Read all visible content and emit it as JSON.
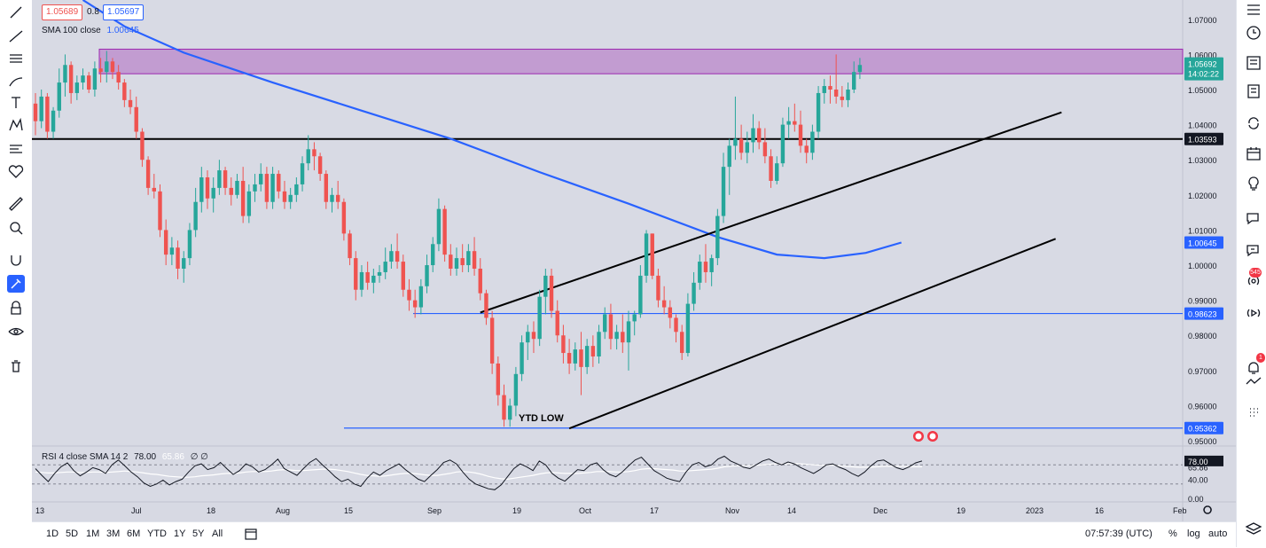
{
  "legend": {
    "open_value": "1.05689",
    "spread": "0.8",
    "close_value": "1.05697",
    "sma_label": "SMA 100 close",
    "sma_value": "1.00645"
  },
  "rsi_legend": {
    "label": "RSI 4 close SMA 14 2",
    "value1": "78.00",
    "value2": "65.86",
    "extras": "∅ ∅"
  },
  "colors": {
    "up": "#26a69a",
    "down": "#ef5350",
    "sma": "#2962ff",
    "zone": "#9c27b0",
    "support": "#000000",
    "blue_line": "#2962ff",
    "price_label": "#26a69a"
  },
  "chart_data": {
    "type": "candlestick",
    "price_axis": [
      "1.07000",
      "1.06000",
      "1.05000",
      "1.04000",
      "1.03000",
      "1.02000",
      "1.01000",
      "1.00000",
      "0.99000",
      "0.98000",
      "0.97000",
      "0.96000",
      "0.95000"
    ],
    "ylim": [
      0.9485,
      1.0755
    ],
    "time_axis": [
      "13",
      "Jul",
      "18",
      "Aug",
      "15",
      "Sep",
      "19",
      "Oct",
      "17",
      "Nov",
      "14",
      "Dec",
      "19",
      "2023",
      "16",
      "Feb"
    ],
    "price_labels": {
      "current": "1.05692",
      "countdown": "14:02:22",
      "level_black": "1.03593",
      "sma": "1.00645",
      "level_blue_1": "0.98623",
      "level_blue_2": "0.95362"
    },
    "annotation": "YTD LOW",
    "horizontal_levels": [
      1.03593,
      0.98623,
      0.95362
    ],
    "resistance_zone": [
      1.0545,
      1.0615
    ],
    "sma100": [
      {
        "day": 8,
        "value": 1.0755
      },
      {
        "day": 15,
        "value": 1.068
      },
      {
        "day": 25,
        "value": 1.0605
      },
      {
        "day": 40,
        "value": 1.052
      },
      {
        "day": 55,
        "value": 1.044
      },
      {
        "day": 70,
        "value": 1.036
      },
      {
        "day": 85,
        "value": 1.0265
      },
      {
        "day": 100,
        "value": 1.0175
      },
      {
        "day": 115,
        "value": 1.008
      },
      {
        "day": 125,
        "value": 1.003
      },
      {
        "day": 133,
        "value": 1.002
      },
      {
        "day": 140,
        "value": 1.0035
      },
      {
        "day": 146,
        "value": 1.00645
      }
    ],
    "trendlines": [
      {
        "x1": 75,
        "y1": 0.9865,
        "x2": 173,
        "y2": 1.0435
      },
      {
        "x1": 90,
        "y1": 0.9535,
        "x2": 172,
        "y2": 1.0075
      }
    ],
    "candles": [
      {
        "o": 1.046,
        "h": 1.049,
        "l": 1.037,
        "c": 1.041
      },
      {
        "o": 1.041,
        "h": 1.05,
        "l": 1.039,
        "c": 1.048
      },
      {
        "o": 1.048,
        "h": 1.049,
        "l": 1.036,
        "c": 1.038
      },
      {
        "o": 1.038,
        "h": 1.045,
        "l": 1.036,
        "c": 1.044
      },
      {
        "o": 1.044,
        "h": 1.056,
        "l": 1.042,
        "c": 1.052
      },
      {
        "o": 1.052,
        "h": 1.06,
        "l": 1.048,
        "c": 1.057
      },
      {
        "o": 1.057,
        "h": 1.058,
        "l": 1.046,
        "c": 1.049
      },
      {
        "o": 1.049,
        "h": 1.054,
        "l": 1.047,
        "c": 1.052
      },
      {
        "o": 1.052,
        "h": 1.056,
        "l": 1.05,
        "c": 1.054
      },
      {
        "o": 1.054,
        "h": 1.055,
        "l": 1.049,
        "c": 1.05
      },
      {
        "o": 1.05,
        "h": 1.058,
        "l": 1.048,
        "c": 1.056
      },
      {
        "o": 1.056,
        "h": 1.059,
        "l": 1.052,
        "c": 1.055
      },
      {
        "o": 1.055,
        "h": 1.061,
        "l": 1.052,
        "c": 1.058
      },
      {
        "o": 1.058,
        "h": 1.059,
        "l": 1.053,
        "c": 1.055
      },
      {
        "o": 1.055,
        "h": 1.057,
        "l": 1.05,
        "c": 1.052
      },
      {
        "o": 1.052,
        "h": 1.053,
        "l": 1.045,
        "c": 1.047
      },
      {
        "o": 1.047,
        "h": 1.05,
        "l": 1.043,
        "c": 1.045
      },
      {
        "o": 1.045,
        "h": 1.048,
        "l": 1.036,
        "c": 1.038
      },
      {
        "o": 1.038,
        "h": 1.039,
        "l": 1.028,
        "c": 1.03
      },
      {
        "o": 1.03,
        "h": 1.031,
        "l": 1.02,
        "c": 1.022
      },
      {
        "o": 1.022,
        "h": 1.026,
        "l": 1.019,
        "c": 1.021
      },
      {
        "o": 1.021,
        "h": 1.023,
        "l": 1.008,
        "c": 1.01
      },
      {
        "o": 1.01,
        "h": 1.013,
        "l": 1.0,
        "c": 1.003
      },
      {
        "o": 1.003,
        "h": 1.008,
        "l": 1.0,
        "c": 1.005
      },
      {
        "o": 1.005,
        "h": 1.007,
        "l": 0.996,
        "c": 0.999
      },
      {
        "o": 0.999,
        "h": 1.004,
        "l": 0.995,
        "c": 1.002
      },
      {
        "o": 1.002,
        "h": 1.012,
        "l": 1.0,
        "c": 1.01
      },
      {
        "o": 1.01,
        "h": 1.022,
        "l": 1.008,
        "c": 1.018
      },
      {
        "o": 1.018,
        "h": 1.028,
        "l": 1.015,
        "c": 1.025
      },
      {
        "o": 1.025,
        "h": 1.027,
        "l": 1.016,
        "c": 1.019
      },
      {
        "o": 1.019,
        "h": 1.025,
        "l": 1.015,
        "c": 1.022
      },
      {
        "o": 1.022,
        "h": 1.03,
        "l": 1.02,
        "c": 1.027
      },
      {
        "o": 1.027,
        "h": 1.028,
        "l": 1.02,
        "c": 1.022
      },
      {
        "o": 1.022,
        "h": 1.025,
        "l": 1.017,
        "c": 1.02
      },
      {
        "o": 1.02,
        "h": 1.026,
        "l": 1.019,
        "c": 1.024
      },
      {
        "o": 1.024,
        "h": 1.028,
        "l": 1.012,
        "c": 1.014
      },
      {
        "o": 1.014,
        "h": 1.023,
        "l": 1.012,
        "c": 1.021
      },
      {
        "o": 1.021,
        "h": 1.026,
        "l": 1.018,
        "c": 1.023
      },
      {
        "o": 1.023,
        "h": 1.029,
        "l": 1.021,
        "c": 1.026
      },
      {
        "o": 1.026,
        "h": 1.028,
        "l": 1.016,
        "c": 1.018
      },
      {
        "o": 1.018,
        "h": 1.028,
        "l": 1.016,
        "c": 1.026
      },
      {
        "o": 1.026,
        "h": 1.027,
        "l": 1.019,
        "c": 1.021
      },
      {
        "o": 1.021,
        "h": 1.024,
        "l": 1.016,
        "c": 1.018
      },
      {
        "o": 1.018,
        "h": 1.022,
        "l": 1.016,
        "c": 1.02
      },
      {
        "o": 1.02,
        "h": 1.025,
        "l": 1.018,
        "c": 1.023
      },
      {
        "o": 1.023,
        "h": 1.031,
        "l": 1.021,
        "c": 1.029
      },
      {
        "o": 1.029,
        "h": 1.037,
        "l": 1.027,
        "c": 1.033
      },
      {
        "o": 1.033,
        "h": 1.035,
        "l": 1.027,
        "c": 1.031
      },
      {
        "o": 1.031,
        "h": 1.032,
        "l": 1.024,
        "c": 1.026
      },
      {
        "o": 1.026,
        "h": 1.027,
        "l": 1.016,
        "c": 1.018
      },
      {
        "o": 1.018,
        "h": 1.022,
        "l": 1.015,
        "c": 1.02
      },
      {
        "o": 1.02,
        "h": 1.024,
        "l": 1.016,
        "c": 1.018
      },
      {
        "o": 1.018,
        "h": 1.019,
        "l": 1.007,
        "c": 1.009
      },
      {
        "o": 1.009,
        "h": 1.01,
        "l": 1.0,
        "c": 1.002
      },
      {
        "o": 1.002,
        "h": 1.004,
        "l": 0.99,
        "c": 0.993
      },
      {
        "o": 0.993,
        "h": 1.0,
        "l": 0.991,
        "c": 0.998
      },
      {
        "o": 0.998,
        "h": 1.001,
        "l": 0.993,
        "c": 0.995
      },
      {
        "o": 0.995,
        "h": 0.999,
        "l": 0.992,
        "c": 0.997
      },
      {
        "o": 0.997,
        "h": 1.0,
        "l": 0.995,
        "c": 0.998
      },
      {
        "o": 0.998,
        "h": 1.005,
        "l": 0.996,
        "c": 1.001
      },
      {
        "o": 1.001,
        "h": 1.006,
        "l": 0.999,
        "c": 1.004
      },
      {
        "o": 1.004,
        "h": 1.009,
        "l": 0.999,
        "c": 1.001
      },
      {
        "o": 1.001,
        "h": 1.003,
        "l": 0.991,
        "c": 0.993
      },
      {
        "o": 0.993,
        "h": 0.996,
        "l": 0.987,
        "c": 0.99
      },
      {
        "o": 0.99,
        "h": 0.993,
        "l": 0.985,
        "c": 0.988
      },
      {
        "o": 0.988,
        "h": 0.996,
        "l": 0.986,
        "c": 0.994
      },
      {
        "o": 0.994,
        "h": 1.003,
        "l": 0.992,
        "c": 1.0
      },
      {
        "o": 1.0,
        "h": 1.008,
        "l": 0.998,
        "c": 1.006
      },
      {
        "o": 1.006,
        "h": 1.019,
        "l": 1.004,
        "c": 1.016
      },
      {
        "o": 1.016,
        "h": 1.017,
        "l": 1.001,
        "c": 1.003
      },
      {
        "o": 1.003,
        "h": 1.006,
        "l": 0.997,
        "c": 0.999
      },
      {
        "o": 0.999,
        "h": 1.005,
        "l": 0.997,
        "c": 1.002
      },
      {
        "o": 1.002,
        "h": 1.006,
        "l": 0.998,
        "c": 1.0
      },
      {
        "o": 1.0,
        "h": 1.006,
        "l": 0.998,
        "c": 1.004
      },
      {
        "o": 1.004,
        "h": 1.008,
        "l": 0.997,
        "c": 0.999
      },
      {
        "o": 0.999,
        "h": 1.002,
        "l": 0.99,
        "c": 0.992
      },
      {
        "o": 0.992,
        "h": 0.993,
        "l": 0.983,
        "c": 0.985
      },
      {
        "o": 0.985,
        "h": 0.987,
        "l": 0.969,
        "c": 0.972
      },
      {
        "o": 0.972,
        "h": 0.974,
        "l": 0.96,
        "c": 0.963
      },
      {
        "o": 0.963,
        "h": 0.966,
        "l": 0.954,
        "c": 0.956
      },
      {
        "o": 0.956,
        "h": 0.962,
        "l": 0.954,
        "c": 0.96
      },
      {
        "o": 0.96,
        "h": 0.971,
        "l": 0.957,
        "c": 0.969
      },
      {
        "o": 0.969,
        "h": 0.98,
        "l": 0.967,
        "c": 0.978
      },
      {
        "o": 0.978,
        "h": 0.983,
        "l": 0.973,
        "c": 0.981
      },
      {
        "o": 0.981,
        "h": 0.984,
        "l": 0.975,
        "c": 0.979
      },
      {
        "o": 0.979,
        "h": 0.993,
        "l": 0.977,
        "c": 0.991
      },
      {
        "o": 0.991,
        "h": 0.999,
        "l": 0.986,
        "c": 0.997
      },
      {
        "o": 0.997,
        "h": 0.999,
        "l": 0.985,
        "c": 0.987
      },
      {
        "o": 0.987,
        "h": 0.99,
        "l": 0.978,
        "c": 0.98
      },
      {
        "o": 0.98,
        "h": 0.983,
        "l": 0.972,
        "c": 0.975
      },
      {
        "o": 0.975,
        "h": 0.979,
        "l": 0.969,
        "c": 0.972
      },
      {
        "o": 0.972,
        "h": 0.978,
        "l": 0.97,
        "c": 0.976
      },
      {
        "o": 0.976,
        "h": 0.981,
        "l": 0.963,
        "c": 0.971
      },
      {
        "o": 0.971,
        "h": 0.979,
        "l": 0.969,
        "c": 0.977
      },
      {
        "o": 0.977,
        "h": 0.98,
        "l": 0.971,
        "c": 0.974
      },
      {
        "o": 0.974,
        "h": 0.983,
        "l": 0.972,
        "c": 0.981
      },
      {
        "o": 0.981,
        "h": 0.988,
        "l": 0.979,
        "c": 0.986
      },
      {
        "o": 0.986,
        "h": 0.989,
        "l": 0.976,
        "c": 0.979
      },
      {
        "o": 0.979,
        "h": 0.983,
        "l": 0.976,
        "c": 0.981
      },
      {
        "o": 0.981,
        "h": 0.986,
        "l": 0.975,
        "c": 0.978
      },
      {
        "o": 0.978,
        "h": 0.987,
        "l": 0.97,
        "c": 0.984
      },
      {
        "o": 0.984,
        "h": 0.987,
        "l": 0.98,
        "c": 0.986
      },
      {
        "o": 0.986,
        "h": 1.0,
        "l": 0.985,
        "c": 0.997
      },
      {
        "o": 0.997,
        "h": 1.01,
        "l": 0.995,
        "c": 1.009
      },
      {
        "o": 1.009,
        "h": 1.009,
        "l": 0.996,
        "c": 0.997
      },
      {
        "o": 0.997,
        "h": 0.999,
        "l": 0.988,
        "c": 0.99
      },
      {
        "o": 0.99,
        "h": 0.994,
        "l": 0.986,
        "c": 0.988
      },
      {
        "o": 0.988,
        "h": 0.99,
        "l": 0.982,
        "c": 0.985
      },
      {
        "o": 0.985,
        "h": 0.986,
        "l": 0.978,
        "c": 0.981
      },
      {
        "o": 0.981,
        "h": 0.983,
        "l": 0.973,
        "c": 0.975
      },
      {
        "o": 0.975,
        "h": 0.992,
        "l": 0.974,
        "c": 0.989
      },
      {
        "o": 0.989,
        "h": 0.998,
        "l": 0.987,
        "c": 0.995
      },
      {
        "o": 0.995,
        "h": 1.003,
        "l": 0.993,
        "c": 1.001
      },
      {
        "o": 1.001,
        "h": 1.006,
        "l": 0.995,
        "c": 0.998
      },
      {
        "o": 0.998,
        "h": 1.003,
        "l": 0.994,
        "c": 1.002
      },
      {
        "o": 1.002,
        "h": 1.016,
        "l": 1.0,
        "c": 1.014
      },
      {
        "o": 1.014,
        "h": 1.032,
        "l": 1.012,
        "c": 1.028
      },
      {
        "o": 1.028,
        "h": 1.036,
        "l": 1.02,
        "c": 1.034
      },
      {
        "o": 1.034,
        "h": 1.048,
        "l": 1.03,
        "c": 1.036
      },
      {
        "o": 1.036,
        "h": 1.04,
        "l": 1.03,
        "c": 1.032
      },
      {
        "o": 1.032,
        "h": 1.038,
        "l": 1.029,
        "c": 1.035
      },
      {
        "o": 1.035,
        "h": 1.043,
        "l": 1.032,
        "c": 1.039
      },
      {
        "o": 1.039,
        "h": 1.041,
        "l": 1.033,
        "c": 1.035
      },
      {
        "o": 1.035,
        "h": 1.039,
        "l": 1.029,
        "c": 1.031
      },
      {
        "o": 1.031,
        "h": 1.033,
        "l": 1.022,
        "c": 1.024
      },
      {
        "o": 1.024,
        "h": 1.031,
        "l": 1.023,
        "c": 1.029
      },
      {
        "o": 1.029,
        "h": 1.042,
        "l": 1.028,
        "c": 1.04
      },
      {
        "o": 1.04,
        "h": 1.045,
        "l": 1.036,
        "c": 1.041
      },
      {
        "o": 1.041,
        "h": 1.046,
        "l": 1.038,
        "c": 1.04
      },
      {
        "o": 1.04,
        "h": 1.044,
        "l": 1.032,
        "c": 1.034
      },
      {
        "o": 1.034,
        "h": 1.036,
        "l": 1.029,
        "c": 1.032
      },
      {
        "o": 1.032,
        "h": 1.04,
        "l": 1.03,
        "c": 1.038
      },
      {
        "o": 1.038,
        "h": 1.051,
        "l": 1.036,
        "c": 1.049
      },
      {
        "o": 1.049,
        "h": 1.053,
        "l": 1.046,
        "c": 1.051
      },
      {
        "o": 1.051,
        "h": 1.054,
        "l": 1.046,
        "c": 1.05
      },
      {
        "o": 1.05,
        "h": 1.06,
        "l": 1.046,
        "c": 1.048
      },
      {
        "o": 1.048,
        "h": 1.051,
        "l": 1.045,
        "c": 1.047
      },
      {
        "o": 1.047,
        "h": 1.052,
        "l": 1.045,
        "c": 1.05
      },
      {
        "o": 1.05,
        "h": 1.058,
        "l": 1.049,
        "c": 1.055
      },
      {
        "o": 1.055,
        "h": 1.059,
        "l": 1.053,
        "c": 1.057
      }
    ],
    "rsi": [
      62,
      48,
      35,
      52,
      66,
      74,
      58,
      47,
      55,
      64,
      60,
      52,
      70,
      80,
      68,
      55,
      45,
      32,
      25,
      30,
      38,
      28,
      35,
      40,
      55,
      68,
      72,
      60,
      64,
      75,
      62,
      50,
      58,
      72,
      66,
      55,
      60,
      70,
      82,
      62,
      55,
      48,
      62,
      75,
      83,
      70,
      58,
      45,
      35,
      40,
      30,
      25,
      42,
      55,
      48,
      58,
      65,
      72,
      60,
      50,
      40,
      35,
      48,
      60,
      75,
      80,
      72,
      55,
      40,
      30,
      25,
      20,
      18,
      28,
      45,
      62,
      72,
      66,
      58,
      78,
      70,
      52,
      42,
      36,
      48,
      60,
      58,
      70,
      74,
      60,
      50,
      45,
      55,
      68,
      80,
      86,
      72,
      58,
      50,
      42,
      38,
      35,
      55,
      70,
      75,
      66,
      70,
      82,
      88,
      78,
      72,
      65,
      62,
      70,
      78,
      82,
      75,
      70,
      76,
      72,
      64,
      58,
      52,
      60,
      70,
      72,
      65,
      60,
      52,
      46,
      55,
      68,
      78,
      80,
      72,
      64,
      60,
      66,
      74,
      78
    ],
    "rsi_sma": [
      55,
      54,
      53,
      53,
      54,
      55,
      55,
      54,
      54,
      55,
      55,
      54,
      55,
      56,
      57,
      56,
      55,
      53,
      51,
      50,
      48,
      46,
      45,
      44,
      44,
      45,
      47,
      48,
      49,
      51,
      52,
      52,
      53,
      55,
      56,
      56,
      56,
      57,
      59,
      60,
      59,
      58,
      58,
      59,
      60,
      61,
      61,
      60,
      58,
      56,
      53,
      50,
      48,
      47,
      46,
      47,
      49,
      51,
      52,
      52,
      51,
      49,
      48,
      48,
      50,
      52,
      55,
      56,
      55,
      53,
      50,
      46,
      43,
      41,
      40,
      42,
      44,
      46,
      48,
      51,
      53,
      54,
      53,
      52,
      52,
      52,
      53,
      54,
      56,
      56,
      56,
      55,
      55,
      56,
      58,
      61,
      62,
      62,
      61,
      60,
      59,
      57,
      57,
      58,
      59,
      60,
      61,
      63,
      66,
      67,
      68,
      68,
      68,
      69,
      70,
      71,
      72,
      72,
      72,
      73,
      72,
      71,
      70,
      69,
      69,
      69,
      68,
      67,
      66,
      65,
      65,
      65,
      66,
      67,
      67,
      67,
      67,
      66,
      66,
      66
    ],
    "rsi_axis": [
      "78.00",
      "65.86",
      "40.00",
      "0.00"
    ]
  },
  "bottom_bar": {
    "ranges": [
      "1D",
      "5D",
      "1M",
      "3M",
      "6M",
      "YTD",
      "1Y",
      "5Y",
      "All"
    ],
    "time": "07:57:39 (UTC)",
    "percent": "%",
    "log": "log",
    "auto": "auto"
  },
  "notifications": {
    "badge1": "545",
    "badge2": "1"
  },
  "toolbar": {
    "left_icons": [
      "crosshair-icon",
      "trend-line-icon",
      "fib-icon",
      "brush-icon",
      "text-icon",
      "pattern-icon",
      "forecast-icon",
      "heart-icon",
      "ruler-icon",
      "zoom-icon",
      "magnet-icon",
      "lock-drawings-icon",
      "lock-icon",
      "eye-icon",
      "trash-icon"
    ],
    "right_icons": [
      "watchlist-icon",
      "clock-icon",
      "news-icon",
      "calendar-list-icon",
      "refresh-icon",
      "calendar-icon",
      "idea-icon",
      "chat-icon",
      "chat2-icon",
      "broadcast-icon",
      "live-icon",
      "bell-icon",
      "signal-icon",
      "dots-grid-icon",
      "layers-icon"
    ]
  }
}
